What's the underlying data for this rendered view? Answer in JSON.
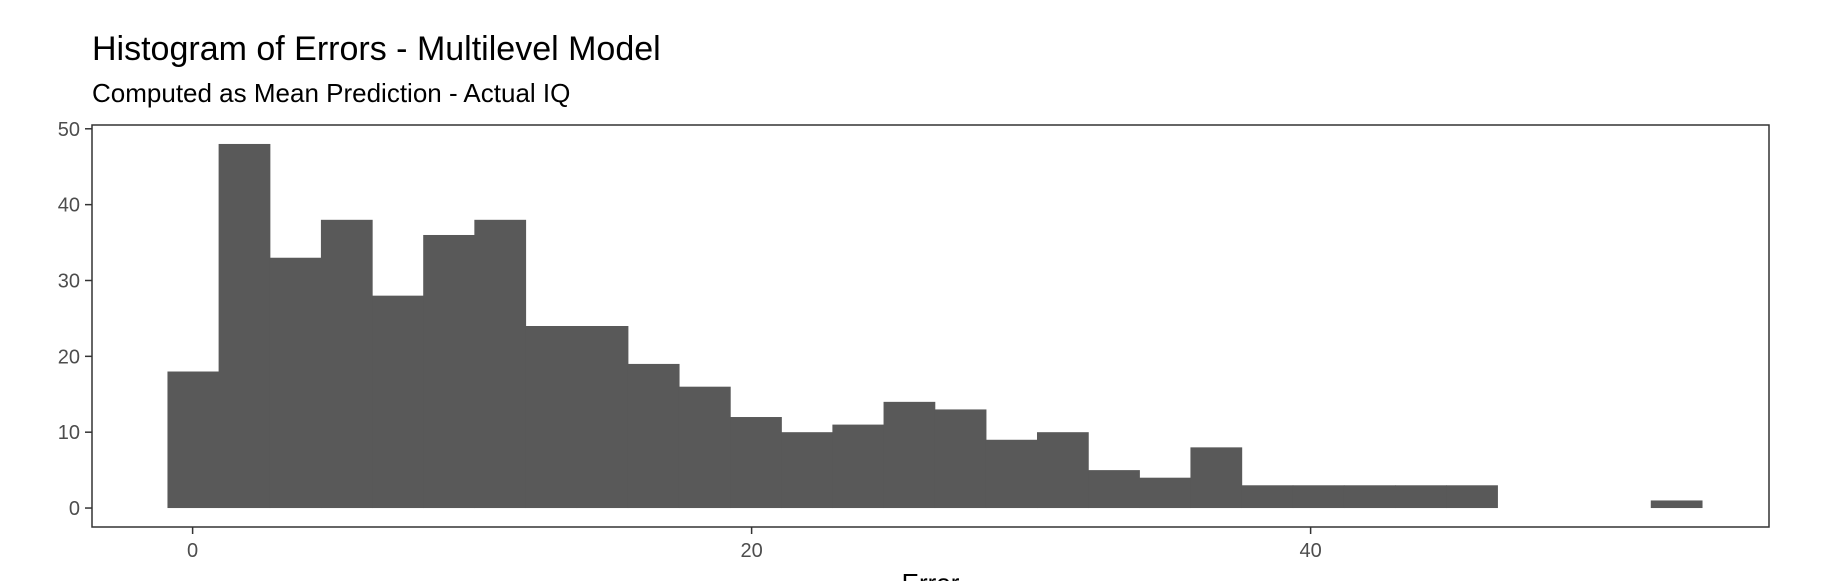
{
  "chart_data": {
    "type": "bar",
    "title": "Histogram of Errors - Multilevel Model",
    "subtitle": "Computed as Mean Prediction - Actual IQ",
    "xlabel": "Error",
    "ylabel": "",
    "xlim": [
      -3.6,
      56.4
    ],
    "ylim": [
      -2.5,
      50.5
    ],
    "x_ticks": [
      0,
      20,
      40
    ],
    "y_ticks": [
      0,
      10,
      20,
      30,
      40,
      50
    ],
    "bin_width": 1.83,
    "bins": [
      {
        "start": -0.9,
        "count": 18
      },
      {
        "start": 0.93,
        "count": 48
      },
      {
        "start": 2.76,
        "count": 33
      },
      {
        "start": 4.59,
        "count": 38
      },
      {
        "start": 6.42,
        "count": 28
      },
      {
        "start": 8.25,
        "count": 36
      },
      {
        "start": 10.08,
        "count": 38
      },
      {
        "start": 11.91,
        "count": 24
      },
      {
        "start": 13.74,
        "count": 24
      },
      {
        "start": 15.57,
        "count": 19
      },
      {
        "start": 17.4,
        "count": 16
      },
      {
        "start": 19.23,
        "count": 12
      },
      {
        "start": 21.06,
        "count": 10
      },
      {
        "start": 22.89,
        "count": 11
      },
      {
        "start": 24.72,
        "count": 14
      },
      {
        "start": 26.55,
        "count": 13
      },
      {
        "start": 28.38,
        "count": 9
      },
      {
        "start": 30.21,
        "count": 10
      },
      {
        "start": 32.04,
        "count": 5
      },
      {
        "start": 33.87,
        "count": 4
      },
      {
        "start": 35.7,
        "count": 8
      },
      {
        "start": 37.53,
        "count": 3
      },
      {
        "start": 39.36,
        "count": 3
      },
      {
        "start": 41.19,
        "count": 3
      },
      {
        "start": 43.02,
        "count": 3
      },
      {
        "start": 44.85,
        "count": 3
      },
      {
        "start": 52.17,
        "count": 1
      }
    ],
    "bar_color": "#595959",
    "panel_border_color": "#333333",
    "grid": false,
    "legend": false
  }
}
